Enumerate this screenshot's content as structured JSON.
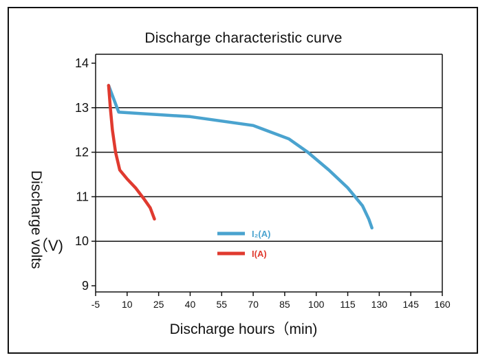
{
  "chart_data": {
    "type": "line",
    "title": "Discharge characteristic curve",
    "xlabel": "Discharge hours（min)",
    "ylabel": "Discharge volts",
    "ylabel_unit": "（V)",
    "xlim": [
      -5,
      160
    ],
    "ylim": [
      9,
      14
    ],
    "x_ticks": [
      -5,
      10,
      25,
      40,
      55,
      70,
      85,
      100,
      115,
      130,
      145,
      160
    ],
    "y_ticks": [
      9,
      10,
      11,
      12,
      13,
      14
    ],
    "grid": "horizontal",
    "legend_position": "center-bottom",
    "series": [
      {
        "name": "I₂(A)",
        "color": "#4aa3cf",
        "points": [
          [
            1.2,
            13.5
          ],
          [
            6,
            12.9
          ],
          [
            40,
            12.8
          ],
          [
            70,
            12.6
          ],
          [
            87,
            12.3
          ],
          [
            96,
            12.0
          ],
          [
            106,
            11.6
          ],
          [
            115,
            11.2
          ],
          [
            122,
            10.8
          ],
          [
            125,
            10.5
          ],
          [
            126.5,
            10.3
          ]
        ]
      },
      {
        "name": "I(A)",
        "color": "#e03a2f",
        "points": [
          [
            1.2,
            13.5
          ],
          [
            2.0,
            13.0
          ],
          [
            3.0,
            12.5
          ],
          [
            4.5,
            12.0
          ],
          [
            6.5,
            11.6
          ],
          [
            10,
            11.4
          ],
          [
            14,
            11.2
          ],
          [
            18,
            10.95
          ],
          [
            21,
            10.75
          ],
          [
            23,
            10.5
          ]
        ]
      }
    ]
  }
}
